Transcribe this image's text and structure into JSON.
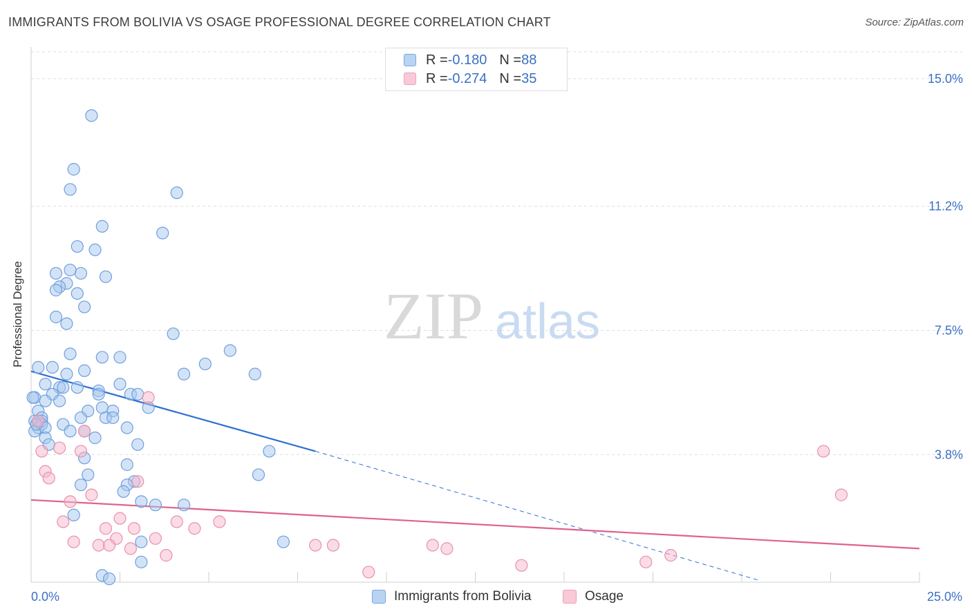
{
  "title": "IMMIGRANTS FROM BOLIVIA VS OSAGE PROFESSIONAL DEGREE CORRELATION CHART",
  "source": "Source: ZipAtlas.com",
  "watermark": {
    "zip": "ZIP",
    "atlas": "atlas"
  },
  "legend": {
    "series1": {
      "r_label": "R = ",
      "r_value": "-0.180",
      "n_label": "N = ",
      "n_value": "88"
    },
    "series2": {
      "r_label": "R = ",
      "r_value": "-0.274",
      "n_label": "N = ",
      "n_value": "35"
    }
  },
  "colors": {
    "blue_fill": "#a8c8f0",
    "blue_stroke": "#6f9fdc",
    "blue_line": "#2f6fd0",
    "pink_fill": "#f7b8cb",
    "pink_stroke": "#e890ab",
    "pink_line": "#e0608c",
    "grid": "#dddddd",
    "tick_label": "#3a6fc4"
  },
  "chart_data": {
    "type": "scatter",
    "title": "IMMIGRANTS FROM BOLIVIA VS OSAGE PROFESSIONAL DEGREE CORRELATION CHART",
    "xlabel": "",
    "ylabel": "Professional Degree",
    "xlim": [
      0,
      25
    ],
    "ylim": [
      0,
      15.8
    ],
    "x_tick_labels": [
      "0.0%",
      "25.0%"
    ],
    "y_ticks": [
      3.8,
      7.5,
      11.2,
      15.0
    ],
    "y_tick_labels": [
      "3.8%",
      "7.5%",
      "11.2%",
      "15.0%"
    ],
    "series": [
      {
        "name": "Immigrants from Bolivia",
        "r": -0.18,
        "n": 88,
        "trend": {
          "x": [
            0.0,
            8.0
          ],
          "y": [
            6.28,
            3.9
          ],
          "dashed_to": [
            20.5,
            0.05
          ]
        },
        "points": [
          [
            1.7,
            13.9
          ],
          [
            1.2,
            12.3
          ],
          [
            1.1,
            11.7
          ],
          [
            4.1,
            11.6
          ],
          [
            2.0,
            10.6
          ],
          [
            3.7,
            10.4
          ],
          [
            1.3,
            10.0
          ],
          [
            1.8,
            9.9
          ],
          [
            0.7,
            9.2
          ],
          [
            1.4,
            9.2
          ],
          [
            1.1,
            9.3
          ],
          [
            2.1,
            9.1
          ],
          [
            1.0,
            8.9
          ],
          [
            0.8,
            8.8
          ],
          [
            0.7,
            8.7
          ],
          [
            1.3,
            8.6
          ],
          [
            1.5,
            8.2
          ],
          [
            0.7,
            7.9
          ],
          [
            1.0,
            7.7
          ],
          [
            4.0,
            7.4
          ],
          [
            5.6,
            6.9
          ],
          [
            1.1,
            6.8
          ],
          [
            2.0,
            6.7
          ],
          [
            2.5,
            6.7
          ],
          [
            4.9,
            6.5
          ],
          [
            0.2,
            6.4
          ],
          [
            0.6,
            6.4
          ],
          [
            1.5,
            6.3
          ],
          [
            6.3,
            6.2
          ],
          [
            4.3,
            6.2
          ],
          [
            1.0,
            6.2
          ],
          [
            0.4,
            5.9
          ],
          [
            0.8,
            5.8
          ],
          [
            1.3,
            5.8
          ],
          [
            2.5,
            5.9
          ],
          [
            0.9,
            5.8
          ],
          [
            0.6,
            5.6
          ],
          [
            1.9,
            5.7
          ],
          [
            2.8,
            5.6
          ],
          [
            3.0,
            5.6
          ],
          [
            0.1,
            5.5
          ],
          [
            0.4,
            5.4
          ],
          [
            0.8,
            5.4
          ],
          [
            1.9,
            5.6
          ],
          [
            3.3,
            5.2
          ],
          [
            0.2,
            5.1
          ],
          [
            1.6,
            5.1
          ],
          [
            2.0,
            5.2
          ],
          [
            2.3,
            5.1
          ],
          [
            0.3,
            4.9
          ],
          [
            1.4,
            4.9
          ],
          [
            2.1,
            4.9
          ],
          [
            2.3,
            4.9
          ],
          [
            0.1,
            4.8
          ],
          [
            0.2,
            4.8
          ],
          [
            0.3,
            4.8
          ],
          [
            0.9,
            4.7
          ],
          [
            2.7,
            4.6
          ],
          [
            0.2,
            4.6
          ],
          [
            0.1,
            4.5
          ],
          [
            0.3,
            4.7
          ],
          [
            0.4,
            4.6
          ],
          [
            1.1,
            4.5
          ],
          [
            1.5,
            4.5
          ],
          [
            0.4,
            4.3
          ],
          [
            1.8,
            4.3
          ],
          [
            0.5,
            4.1
          ],
          [
            3.0,
            4.1
          ],
          [
            6.7,
            3.9
          ],
          [
            1.5,
            3.7
          ],
          [
            2.7,
            3.5
          ],
          [
            1.6,
            3.2
          ],
          [
            6.4,
            3.2
          ],
          [
            2.9,
            3.0
          ],
          [
            2.7,
            2.9
          ],
          [
            1.4,
            2.9
          ],
          [
            2.6,
            2.7
          ],
          [
            3.1,
            2.4
          ],
          [
            3.5,
            2.3
          ],
          [
            4.3,
            2.3
          ],
          [
            1.2,
            2.0
          ],
          [
            3.1,
            1.2
          ],
          [
            7.1,
            1.2
          ],
          [
            3.1,
            0.6
          ],
          [
            2.0,
            0.2
          ],
          [
            2.2,
            0.1
          ],
          [
            0.05,
            5.5
          ],
          [
            0.15,
            4.7
          ]
        ]
      },
      {
        "name": "Osage",
        "r": -0.274,
        "n": 35,
        "trend": {
          "x": [
            0.0,
            25.0
          ],
          "y": [
            2.45,
            1.0
          ]
        },
        "points": [
          [
            3.3,
            5.5
          ],
          [
            1.5,
            4.5
          ],
          [
            0.8,
            4.0
          ],
          [
            1.4,
            3.9
          ],
          [
            0.3,
            3.9
          ],
          [
            0.4,
            3.3
          ],
          [
            0.5,
            3.1
          ],
          [
            3.0,
            3.0
          ],
          [
            22.3,
            3.9
          ],
          [
            22.8,
            2.6
          ],
          [
            1.7,
            2.6
          ],
          [
            1.1,
            2.4
          ],
          [
            2.5,
            1.9
          ],
          [
            4.1,
            1.8
          ],
          [
            5.3,
            1.8
          ],
          [
            0.9,
            1.8
          ],
          [
            2.1,
            1.6
          ],
          [
            2.9,
            1.6
          ],
          [
            4.6,
            1.6
          ],
          [
            2.4,
            1.3
          ],
          [
            3.5,
            1.3
          ],
          [
            1.2,
            1.2
          ],
          [
            1.9,
            1.1
          ],
          [
            2.2,
            1.1
          ],
          [
            2.8,
            1.0
          ],
          [
            8.0,
            1.1
          ],
          [
            8.5,
            1.1
          ],
          [
            11.3,
            1.1
          ],
          [
            11.7,
            1.0
          ],
          [
            3.8,
            0.8
          ],
          [
            18.0,
            0.8
          ],
          [
            17.3,
            0.6
          ],
          [
            13.8,
            0.5
          ],
          [
            9.5,
            0.3
          ],
          [
            0.2,
            4.8
          ]
        ]
      }
    ],
    "legend": [
      "Immigrants from Bolivia",
      "Osage"
    ]
  }
}
